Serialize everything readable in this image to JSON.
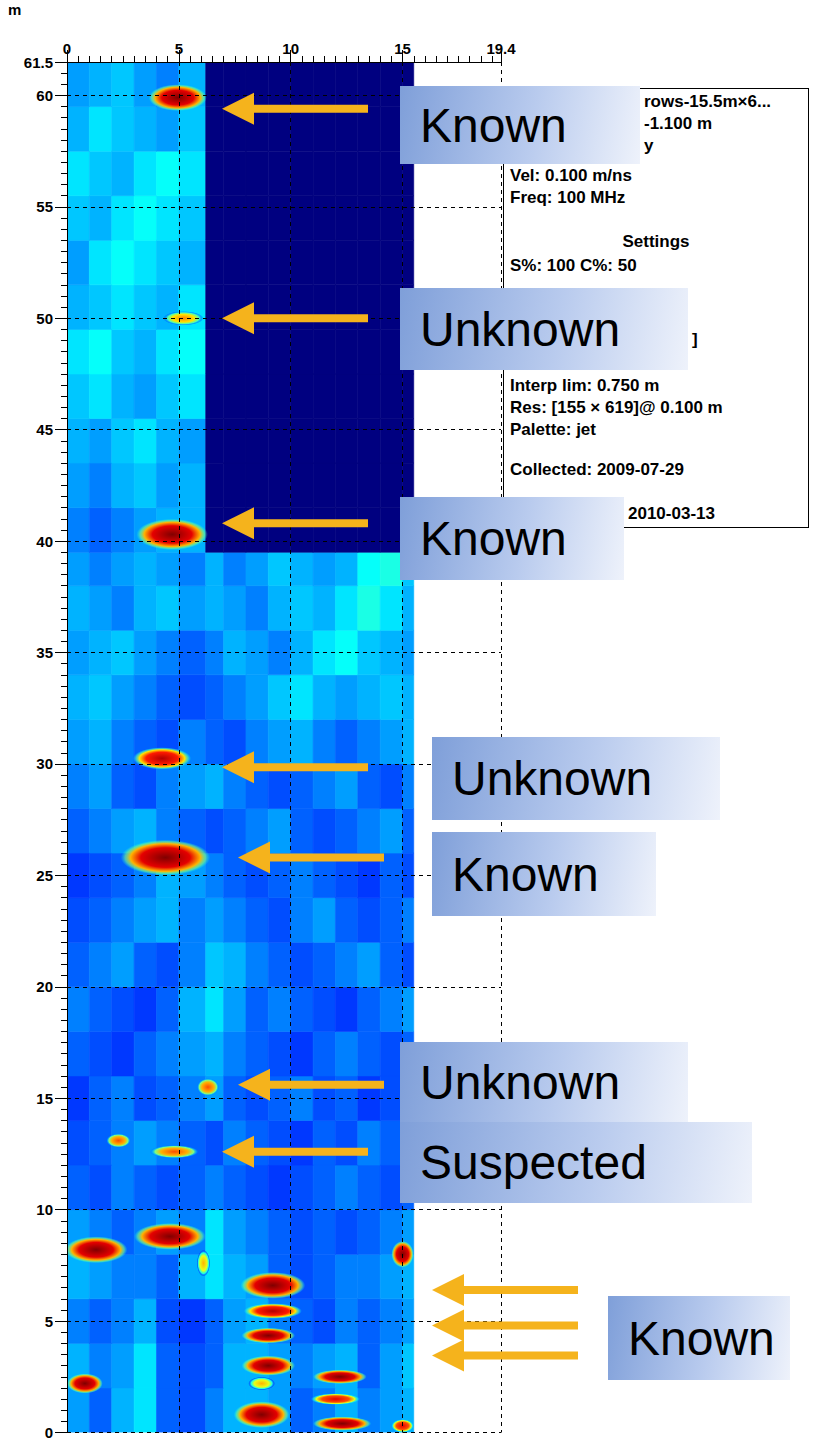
{
  "chart_data": {
    "type": "heatmap",
    "ylabel": "m",
    "xlim": [
      0,
      19.4
    ],
    "ylim": [
      0,
      61.5
    ],
    "xticks": [
      0,
      5,
      10,
      15
    ],
    "yticks": [
      0,
      5,
      10,
      15,
      20,
      25,
      30,
      35,
      40,
      45,
      50,
      55,
      60
    ],
    "grid": true,
    "value_range": [
      0,
      100
    ],
    "x_edges": [
      0,
      1,
      2,
      3,
      4,
      5,
      6.2,
      7,
      8,
      9,
      10,
      11,
      12,
      13,
      14,
      15,
      15.5
    ],
    "y_edges": [
      0,
      2,
      4,
      6,
      8,
      10,
      12,
      14,
      16,
      18,
      20,
      22,
      24,
      26,
      28,
      30,
      32,
      34,
      36,
      38,
      39.5,
      41.5,
      43.5,
      45.5,
      47.5,
      49.5,
      51.5,
      53.5,
      55.5,
      57.5,
      59.5,
      61.5
    ],
    "cells": [
      [
        28,
        22,
        30,
        35,
        22,
        20,
        25,
        30,
        30,
        28,
        22,
        25,
        30,
        25,
        28,
        30
      ],
      [
        30,
        25,
        28,
        35,
        22,
        20,
        22,
        30,
        30,
        28,
        25,
        28,
        30,
        22,
        28,
        32
      ],
      [
        25,
        22,
        25,
        30,
        20,
        18,
        22,
        28,
        30,
        25,
        22,
        20,
        25,
        22,
        25,
        28
      ],
      [
        30,
        28,
        25,
        25,
        22,
        30,
        35,
        30,
        28,
        22,
        20,
        22,
        25,
        25,
        28,
        30
      ],
      [
        28,
        25,
        22,
        25,
        28,
        25,
        35,
        28,
        25,
        22,
        20,
        22,
        20,
        22,
        25,
        28
      ],
      [
        22,
        20,
        25,
        22,
        20,
        22,
        25,
        22,
        20,
        18,
        20,
        22,
        25,
        22,
        20,
        22
      ],
      [
        20,
        22,
        25,
        28,
        25,
        22,
        20,
        25,
        22,
        20,
        18,
        22,
        20,
        25,
        22,
        20
      ],
      [
        18,
        22,
        25,
        20,
        22,
        25,
        28,
        22,
        20,
        22,
        25,
        20,
        22,
        18,
        20,
        22
      ],
      [
        22,
        20,
        18,
        22,
        25,
        28,
        30,
        25,
        22,
        20,
        18,
        22,
        25,
        22,
        20,
        22
      ],
      [
        25,
        22,
        20,
        18,
        22,
        30,
        35,
        28,
        22,
        25,
        22,
        20,
        18,
        22,
        25,
        28
      ],
      [
        22,
        25,
        28,
        22,
        20,
        25,
        32,
        30,
        25,
        22,
        20,
        22,
        25,
        28,
        22,
        20
      ],
      [
        20,
        22,
        25,
        28,
        30,
        25,
        28,
        25,
        22,
        20,
        25,
        28,
        22,
        20,
        22,
        25
      ],
      [
        18,
        20,
        22,
        25,
        30,
        28,
        25,
        22,
        20,
        22,
        25,
        22,
        20,
        18,
        22,
        20
      ],
      [
        22,
        25,
        28,
        30,
        25,
        22,
        20,
        22,
        25,
        28,
        22,
        20,
        22,
        25,
        28,
        22
      ],
      [
        25,
        28,
        22,
        20,
        25,
        28,
        30,
        25,
        22,
        20,
        22,
        25,
        28,
        22,
        20,
        25
      ],
      [
        28,
        30,
        25,
        22,
        20,
        25,
        22,
        20,
        25,
        28,
        30,
        25,
        22,
        25,
        28,
        30
      ],
      [
        30,
        32,
        28,
        25,
        22,
        20,
        22,
        25,
        28,
        32,
        35,
        30,
        28,
        30,
        32,
        30
      ],
      [
        28,
        30,
        32,
        28,
        25,
        22,
        25,
        30,
        28,
        25,
        30,
        35,
        38,
        32,
        30,
        28
      ],
      [
        30,
        28,
        25,
        30,
        32,
        28,
        30,
        28,
        25,
        30,
        32,
        30,
        35,
        40,
        35,
        30
      ],
      [
        28,
        25,
        28,
        30,
        28,
        25,
        30,
        25,
        28,
        32,
        30,
        28,
        30,
        38,
        40,
        32
      ],
      [
        25,
        22,
        25,
        28,
        30,
        30,
        0,
        0,
        0,
        0,
        0,
        0,
        0,
        0,
        0,
        0
      ],
      [
        28,
        25,
        30,
        32,
        28,
        30,
        0,
        0,
        0,
        0,
        0,
        0,
        0,
        0,
        0,
        0
      ],
      [
        30,
        28,
        32,
        35,
        30,
        28,
        0,
        0,
        0,
        0,
        0,
        0,
        0,
        0,
        0,
        0
      ],
      [
        32,
        35,
        30,
        28,
        32,
        35,
        0,
        0,
        0,
        0,
        0,
        0,
        0,
        0,
        0,
        0
      ],
      [
        35,
        38,
        32,
        30,
        35,
        38,
        0,
        0,
        0,
        0,
        0,
        0,
        0,
        0,
        0,
        0
      ],
      [
        30,
        32,
        35,
        32,
        30,
        35,
        0,
        0,
        0,
        0,
        0,
        0,
        0,
        0,
        0,
        0
      ],
      [
        28,
        35,
        38,
        35,
        32,
        30,
        0,
        0,
        0,
        0,
        0,
        0,
        0,
        0,
        0,
        0
      ],
      [
        32,
        30,
        35,
        38,
        35,
        32,
        0,
        0,
        0,
        0,
        0,
        0,
        0,
        0,
        0,
        0
      ],
      [
        35,
        32,
        30,
        35,
        38,
        35,
        0,
        0,
        0,
        0,
        0,
        0,
        0,
        0,
        0,
        0
      ],
      [
        30,
        35,
        32,
        30,
        28,
        32,
        0,
        0,
        0,
        0,
        0,
        0,
        0,
        0,
        0,
        0
      ],
      [
        28,
        30,
        32,
        28,
        25,
        30,
        0,
        0,
        0,
        0,
        0,
        0,
        0,
        0,
        0,
        0
      ]
    ],
    "anomalies": [
      {
        "x": 4.95,
        "y": 59.9,
        "rx": 1.3,
        "ry": 0.6,
        "value": 100
      },
      {
        "x": 5.2,
        "y": 50.0,
        "rx": 0.9,
        "ry": 0.32,
        "value": 75
      },
      {
        "x": 4.7,
        "y": 40.3,
        "rx": 1.6,
        "ry": 0.7,
        "value": 100
      },
      {
        "x": 4.25,
        "y": 30.25,
        "rx": 1.3,
        "ry": 0.5,
        "value": 95
      },
      {
        "x": 4.4,
        "y": 25.8,
        "rx": 2.0,
        "ry": 0.8,
        "value": 100
      },
      {
        "x": 6.3,
        "y": 15.5,
        "rx": 0.5,
        "ry": 0.4,
        "value": 80
      },
      {
        "x": 4.8,
        "y": 12.6,
        "rx": 1.1,
        "ry": 0.3,
        "value": 80
      },
      {
        "x": 2.3,
        "y": 13.1,
        "rx": 0.55,
        "ry": 0.32,
        "value": 80
      },
      {
        "x": 1.3,
        "y": 8.2,
        "rx": 1.4,
        "ry": 0.6,
        "value": 100
      },
      {
        "x": 4.6,
        "y": 8.8,
        "rx": 1.6,
        "ry": 0.6,
        "value": 100
      },
      {
        "x": 6.1,
        "y": 7.6,
        "rx": 0.3,
        "ry": 0.6,
        "value": 70
      },
      {
        "x": 15.0,
        "y": 8.0,
        "rx": 0.5,
        "ry": 0.6,
        "value": 100
      },
      {
        "x": 9.2,
        "y": 6.6,
        "rx": 1.45,
        "ry": 0.6,
        "value": 100
      },
      {
        "x": 9.2,
        "y": 5.45,
        "rx": 1.3,
        "ry": 0.35,
        "value": 95
      },
      {
        "x": 9.0,
        "y": 4.35,
        "rx": 1.2,
        "ry": 0.35,
        "value": 100
      },
      {
        "x": 9.0,
        "y": 3.0,
        "rx": 1.2,
        "ry": 0.45,
        "value": 100
      },
      {
        "x": 8.7,
        "y": 2.2,
        "rx": 0.6,
        "ry": 0.3,
        "value": 70
      },
      {
        "x": 8.7,
        "y": 0.8,
        "rx": 1.25,
        "ry": 0.6,
        "value": 100
      },
      {
        "x": 0.8,
        "y": 2.2,
        "rx": 0.8,
        "ry": 0.45,
        "value": 100
      },
      {
        "x": 12.2,
        "y": 2.5,
        "rx": 1.2,
        "ry": 0.32,
        "value": 100
      },
      {
        "x": 12.0,
        "y": 1.5,
        "rx": 1.1,
        "ry": 0.26,
        "value": 90
      },
      {
        "x": 12.3,
        "y": 0.4,
        "rx": 1.3,
        "ry": 0.32,
        "value": 100
      },
      {
        "x": 15.0,
        "y": 0.3,
        "rx": 0.5,
        "ry": 0.3,
        "value": 90
      }
    ],
    "annotations": [
      {
        "text": "Known",
        "y": [
          59.4
        ]
      },
      {
        "text": "Unknown",
        "y": [
          50.0
        ]
      },
      {
        "text": "Known",
        "y": [
          40.8
        ]
      },
      {
        "text": "Unknown",
        "y": [
          29.85
        ]
      },
      {
        "text": "Known",
        "y": [
          25.8
        ]
      },
      {
        "text": "Unknown",
        "y": [
          15.6
        ]
      },
      {
        "text": "Suspected",
        "y": [
          12.6
        ]
      },
      {
        "text": "Known",
        "y": [
          6.4,
          4.8,
          3.45
        ]
      }
    ],
    "info_box": [
      "rows-15.5m×6...",
      "-1.100 m",
      "y",
      "Vel: 0.100 m/ns",
      "Freq: 100 MHz",
      "Settings",
      "S%: 100  C%: 50",
      "]",
      "Interp lim: 0.750 m",
      "Res: [155 × 619]@ 0.100 m",
      "Palette: jet",
      "Collected: 2009-07-29",
      "2010-03-13"
    ]
  }
}
